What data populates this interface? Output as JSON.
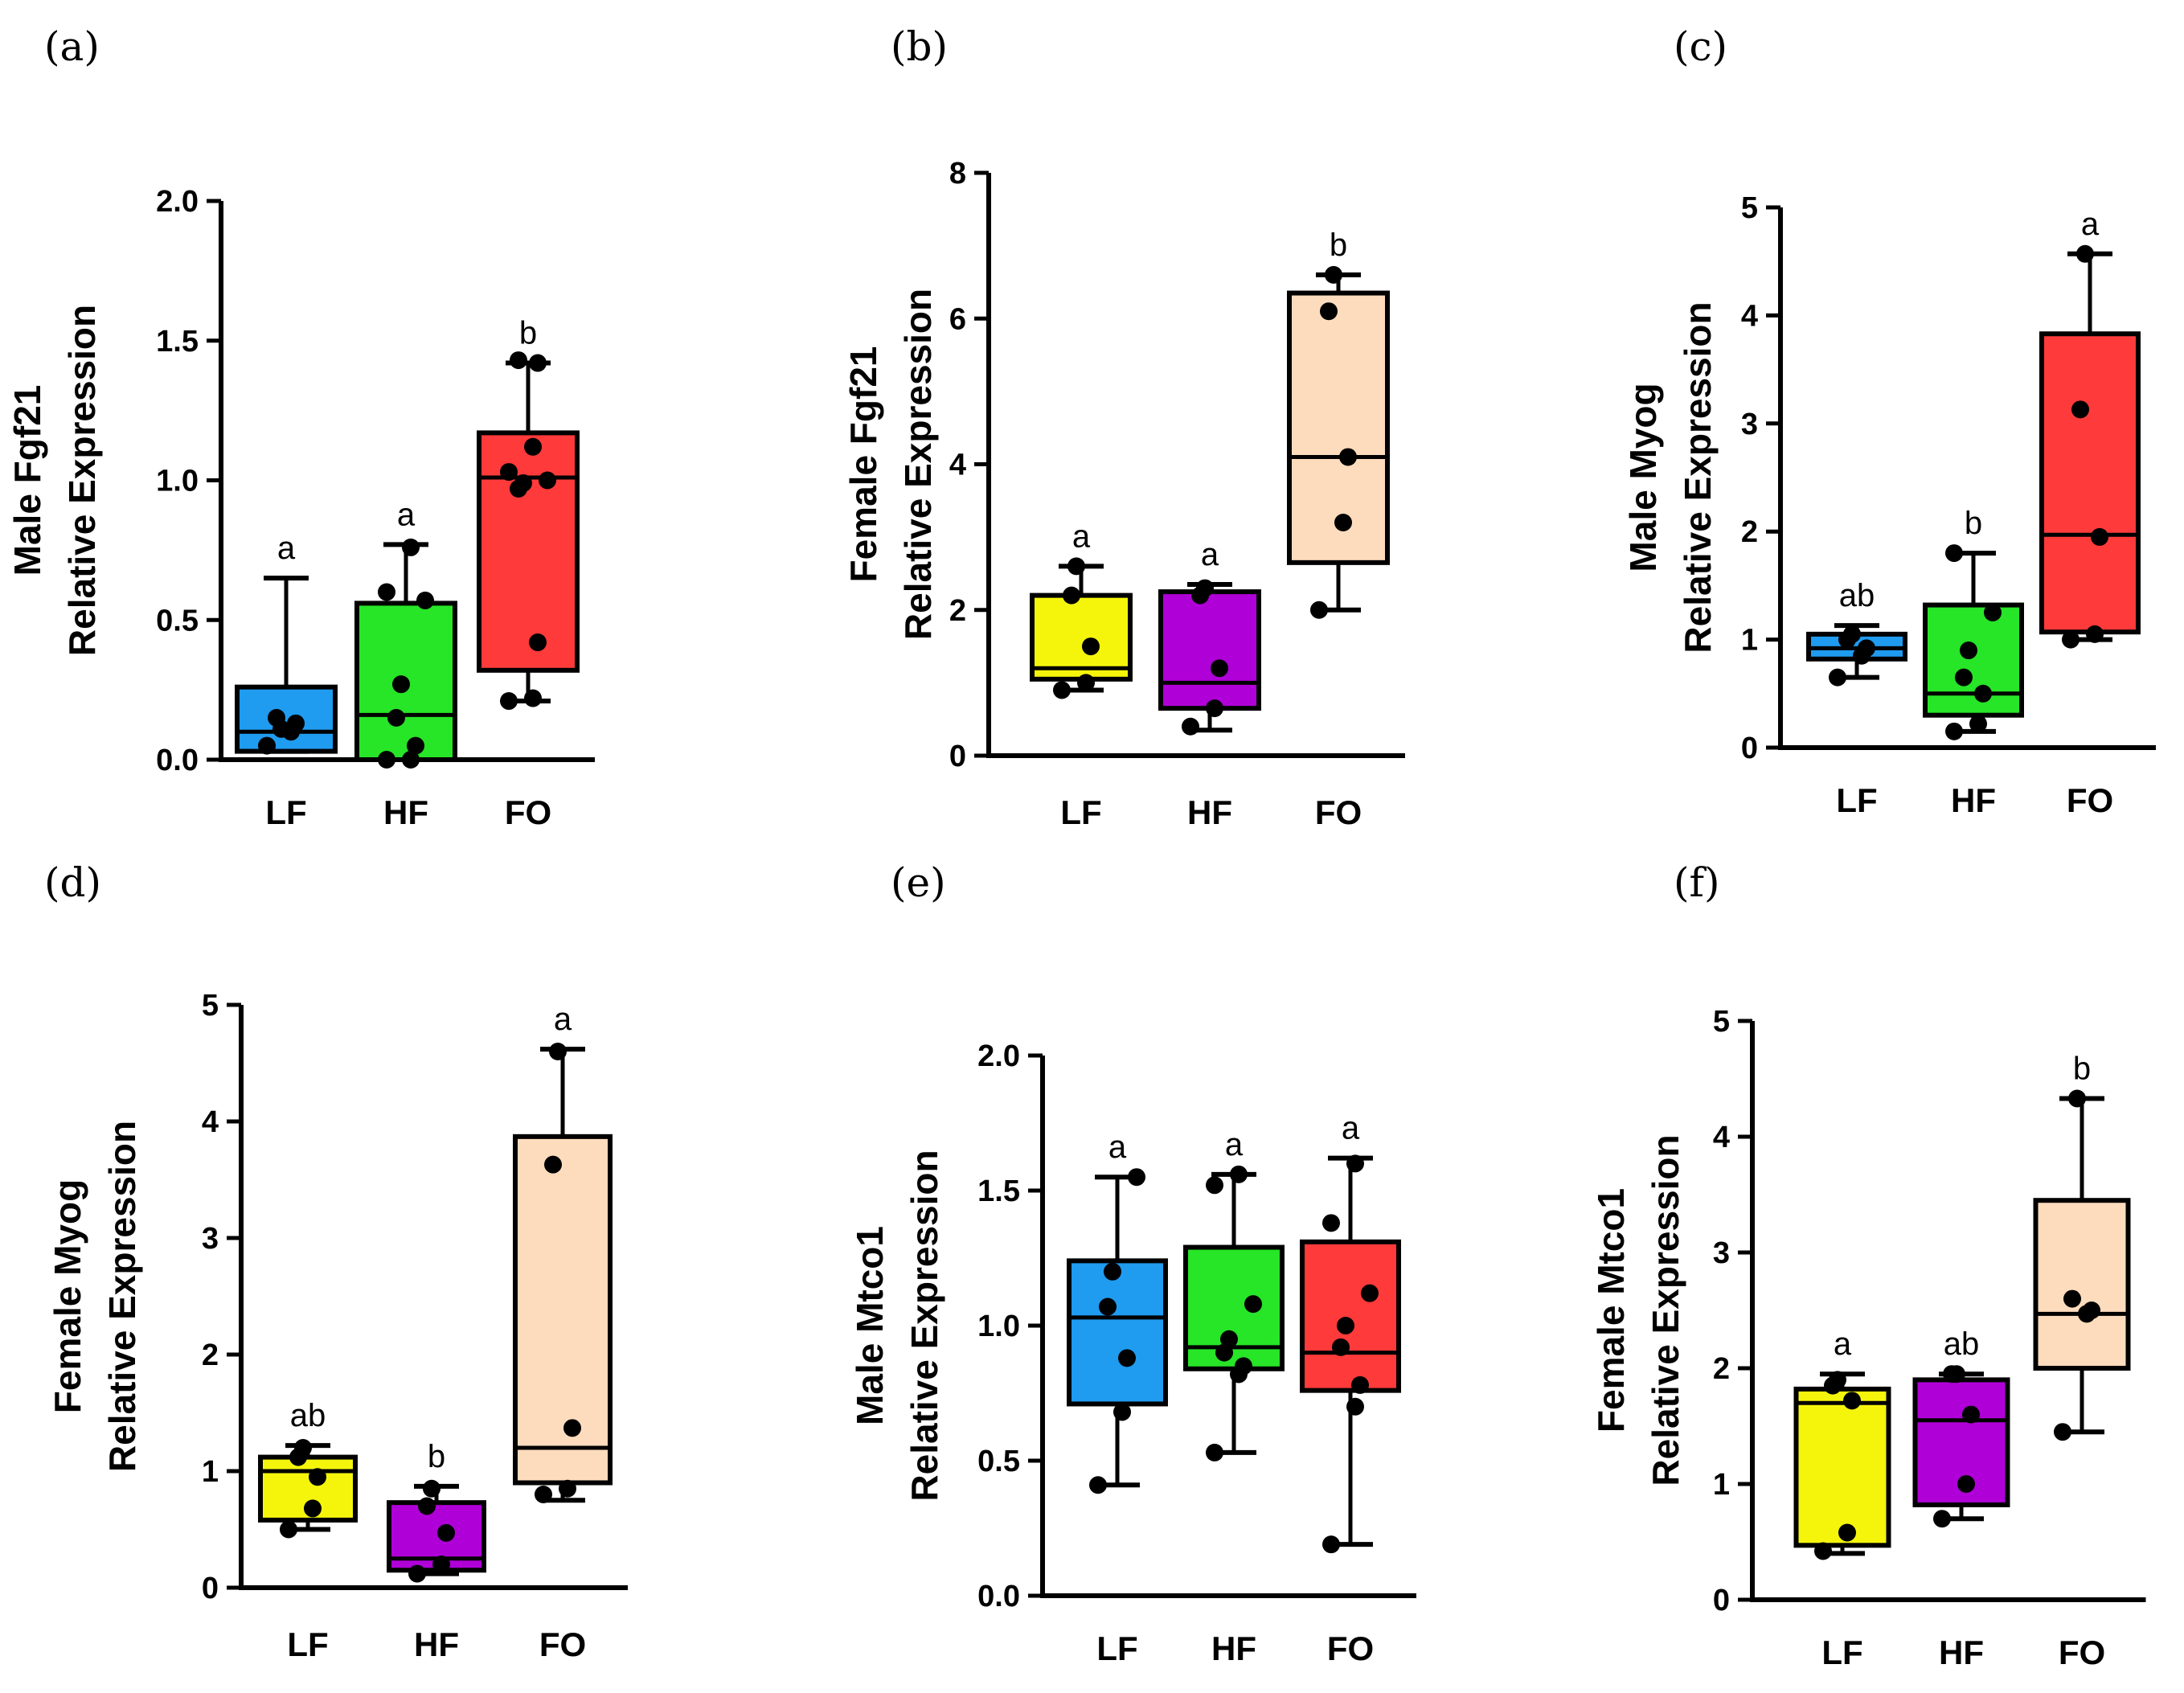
{
  "chart_data": [
    {
      "panel": "(a)",
      "type": "box",
      "ylabel_line1": "Male Fgf21",
      "ylabel_line2": "Relative Expression",
      "ylim": [
        0,
        2.0
      ],
      "yticks": [
        "0.0",
        "0.5",
        "1.0",
        "1.5",
        "2.0"
      ],
      "categories": [
        "LF",
        "HF",
        "FO"
      ],
      "boxes": [
        {
          "color": "#1f9bf0",
          "whisker_low": 0.03,
          "q1": 0.03,
          "median": 0.1,
          "q3": 0.26,
          "whisker_high": 0.65,
          "points": [
            0.05,
            0.1,
            0.13,
            0.15,
            0.11
          ],
          "sig": "a"
        },
        {
          "color": "#27e527",
          "whisker_low": 0.0,
          "q1": 0.0,
          "median": 0.16,
          "q3": 0.56,
          "whisker_high": 0.77,
          "points": [
            0.0,
            0.0,
            0.05,
            0.15,
            0.27,
            0.57,
            0.6,
            0.76
          ],
          "sig": "a"
        },
        {
          "color": "#ff3a3a",
          "whisker_low": 0.21,
          "q1": 0.32,
          "median": 1.01,
          "q3": 1.17,
          "whisker_high": 1.42,
          "points": [
            0.21,
            0.22,
            0.42,
            0.97,
            0.99,
            1.0,
            1.03,
            1.12,
            1.42,
            1.43
          ],
          "sig": "b"
        }
      ]
    },
    {
      "panel": "(b)",
      "type": "box",
      "ylabel_line1": "Female Fgf21",
      "ylabel_line2": "Relative Expression",
      "ylim": [
        0,
        8
      ],
      "yticks": [
        "0",
        "2",
        "4",
        "6",
        "8"
      ],
      "categories": [
        "LF",
        "HF",
        "FO"
      ],
      "boxes": [
        {
          "color": "#f5f50c",
          "whisker_low": 0.9,
          "q1": 1.05,
          "median": 1.2,
          "q3": 2.2,
          "whisker_high": 2.6,
          "points": [
            0.9,
            1.0,
            1.5,
            2.2,
            2.6
          ],
          "sig": "a"
        },
        {
          "color": "#b000d8",
          "whisker_low": 0.35,
          "q1": 0.65,
          "median": 1.0,
          "q3": 2.25,
          "whisker_high": 2.35,
          "points": [
            0.4,
            0.65,
            1.2,
            2.2,
            2.3
          ],
          "sig": "a"
        },
        {
          "color": "#fddcbd",
          "whisker_low": 2.0,
          "q1": 2.65,
          "median": 4.1,
          "q3": 6.35,
          "whisker_high": 6.6,
          "points": [
            2.0,
            3.2,
            4.1,
            6.1,
            6.6
          ],
          "sig": "b"
        }
      ]
    },
    {
      "panel": "(c)",
      "type": "box",
      "ylabel_line1": "Male Myog",
      "ylabel_line2": "Relative Expression",
      "ylim": [
        0,
        5
      ],
      "yticks": [
        "0",
        "1",
        "2",
        "3",
        "4",
        "5"
      ],
      "categories": [
        "LF",
        "HF",
        "FO"
      ],
      "boxes": [
        {
          "color": "#1f9bf0",
          "whisker_low": 0.65,
          "q1": 0.82,
          "median": 0.92,
          "q3": 1.05,
          "whisker_high": 1.13,
          "points": [
            0.65,
            0.85,
            0.92,
            1.0,
            1.05
          ],
          "sig": "ab"
        },
        {
          "color": "#27e527",
          "whisker_low": 0.15,
          "q1": 0.3,
          "median": 0.5,
          "q3": 1.32,
          "whisker_high": 1.8,
          "points": [
            0.15,
            0.22,
            0.5,
            0.65,
            0.9,
            1.25,
            1.8
          ],
          "sig": "b"
        },
        {
          "color": "#ff3a3a",
          "whisker_low": 1.0,
          "q1": 1.07,
          "median": 1.97,
          "q3": 3.83,
          "whisker_high": 4.57,
          "points": [
            1.0,
            1.05,
            1.95,
            3.13,
            4.57
          ],
          "sig": "a"
        }
      ]
    },
    {
      "panel": "(d)",
      "type": "box",
      "ylabel_line1": "Female Myog",
      "ylabel_line2": "Relative Expression",
      "ylim": [
        0,
        5
      ],
      "yticks": [
        "0",
        "1",
        "2",
        "3",
        "4",
        "5"
      ],
      "categories": [
        "LF",
        "HF",
        "FO"
      ],
      "boxes": [
        {
          "color": "#f5f50c",
          "whisker_low": 0.5,
          "q1": 0.58,
          "median": 1.0,
          "q3": 1.12,
          "whisker_high": 1.22,
          "points": [
            0.5,
            0.68,
            0.95,
            1.12,
            1.2
          ],
          "sig": "ab"
        },
        {
          "color": "#b000d8",
          "whisker_low": 0.12,
          "q1": 0.15,
          "median": 0.25,
          "q3": 0.73,
          "whisker_high": 0.87,
          "points": [
            0.12,
            0.2,
            0.47,
            0.7,
            0.85
          ],
          "sig": "b"
        },
        {
          "color": "#fddcbd",
          "whisker_low": 0.75,
          "q1": 0.9,
          "median": 1.2,
          "q3": 3.87,
          "whisker_high": 4.62,
          "points": [
            0.8,
            0.85,
            1.37,
            3.63,
            4.6
          ],
          "sig": "a"
        }
      ]
    },
    {
      "panel": "(e)",
      "type": "box",
      "ylabel_line1": "Male Mtco1",
      "ylabel_line2": "Relative Expression",
      "ylim": [
        0,
        2.0
      ],
      "yticks": [
        "0.0",
        "0.5",
        "1.0",
        "1.5",
        "2.0"
      ],
      "categories": [
        "LF",
        "HF",
        "FO"
      ],
      "boxes": [
        {
          "color": "#1f9bf0",
          "whisker_low": 0.41,
          "q1": 0.71,
          "median": 1.03,
          "q3": 1.24,
          "whisker_high": 1.55,
          "points": [
            0.41,
            0.68,
            0.88,
            1.07,
            1.2,
            1.55
          ],
          "sig": "a"
        },
        {
          "color": "#27e527",
          "whisker_low": 0.53,
          "q1": 0.84,
          "median": 0.92,
          "q3": 1.29,
          "whisker_high": 1.56,
          "points": [
            0.53,
            0.82,
            0.85,
            0.9,
            0.95,
            1.08,
            1.52,
            1.56
          ],
          "sig": "a"
        },
        {
          "color": "#ff3a3a",
          "whisker_low": 0.19,
          "q1": 0.76,
          "median": 0.9,
          "q3": 1.31,
          "whisker_high": 1.62,
          "points": [
            0.19,
            0.7,
            0.78,
            0.92,
            1.0,
            1.12,
            1.38,
            1.6
          ],
          "sig": "a"
        }
      ]
    },
    {
      "panel": "(f)",
      "type": "box",
      "ylabel_line1": "Female Mtco1",
      "ylabel_line2": "Relative Expression",
      "ylim": [
        0,
        5
      ],
      "yticks": [
        "0",
        "1",
        "2",
        "3",
        "4",
        "5"
      ],
      "categories": [
        "LF",
        "HF",
        "FO"
      ],
      "boxes": [
        {
          "color": "#f5f50c",
          "whisker_low": 0.4,
          "q1": 0.47,
          "median": 1.7,
          "q3": 1.82,
          "whisker_high": 1.95,
          "points": [
            0.42,
            0.58,
            1.72,
            1.85,
            1.9
          ],
          "sig": "a"
        },
        {
          "color": "#b000d8",
          "whisker_low": 0.7,
          "q1": 0.82,
          "median": 1.55,
          "q3": 1.9,
          "whisker_high": 1.95,
          "points": [
            0.7,
            1.0,
            1.6,
            1.95,
            1.95
          ],
          "sig": "ab"
        },
        {
          "color": "#fddcbd",
          "whisker_low": 1.45,
          "q1": 2.0,
          "median": 2.47,
          "q3": 3.45,
          "whisker_high": 4.33,
          "points": [
            1.45,
            2.47,
            2.5,
            2.6,
            4.33
          ],
          "sig": "b"
        }
      ]
    }
  ]
}
